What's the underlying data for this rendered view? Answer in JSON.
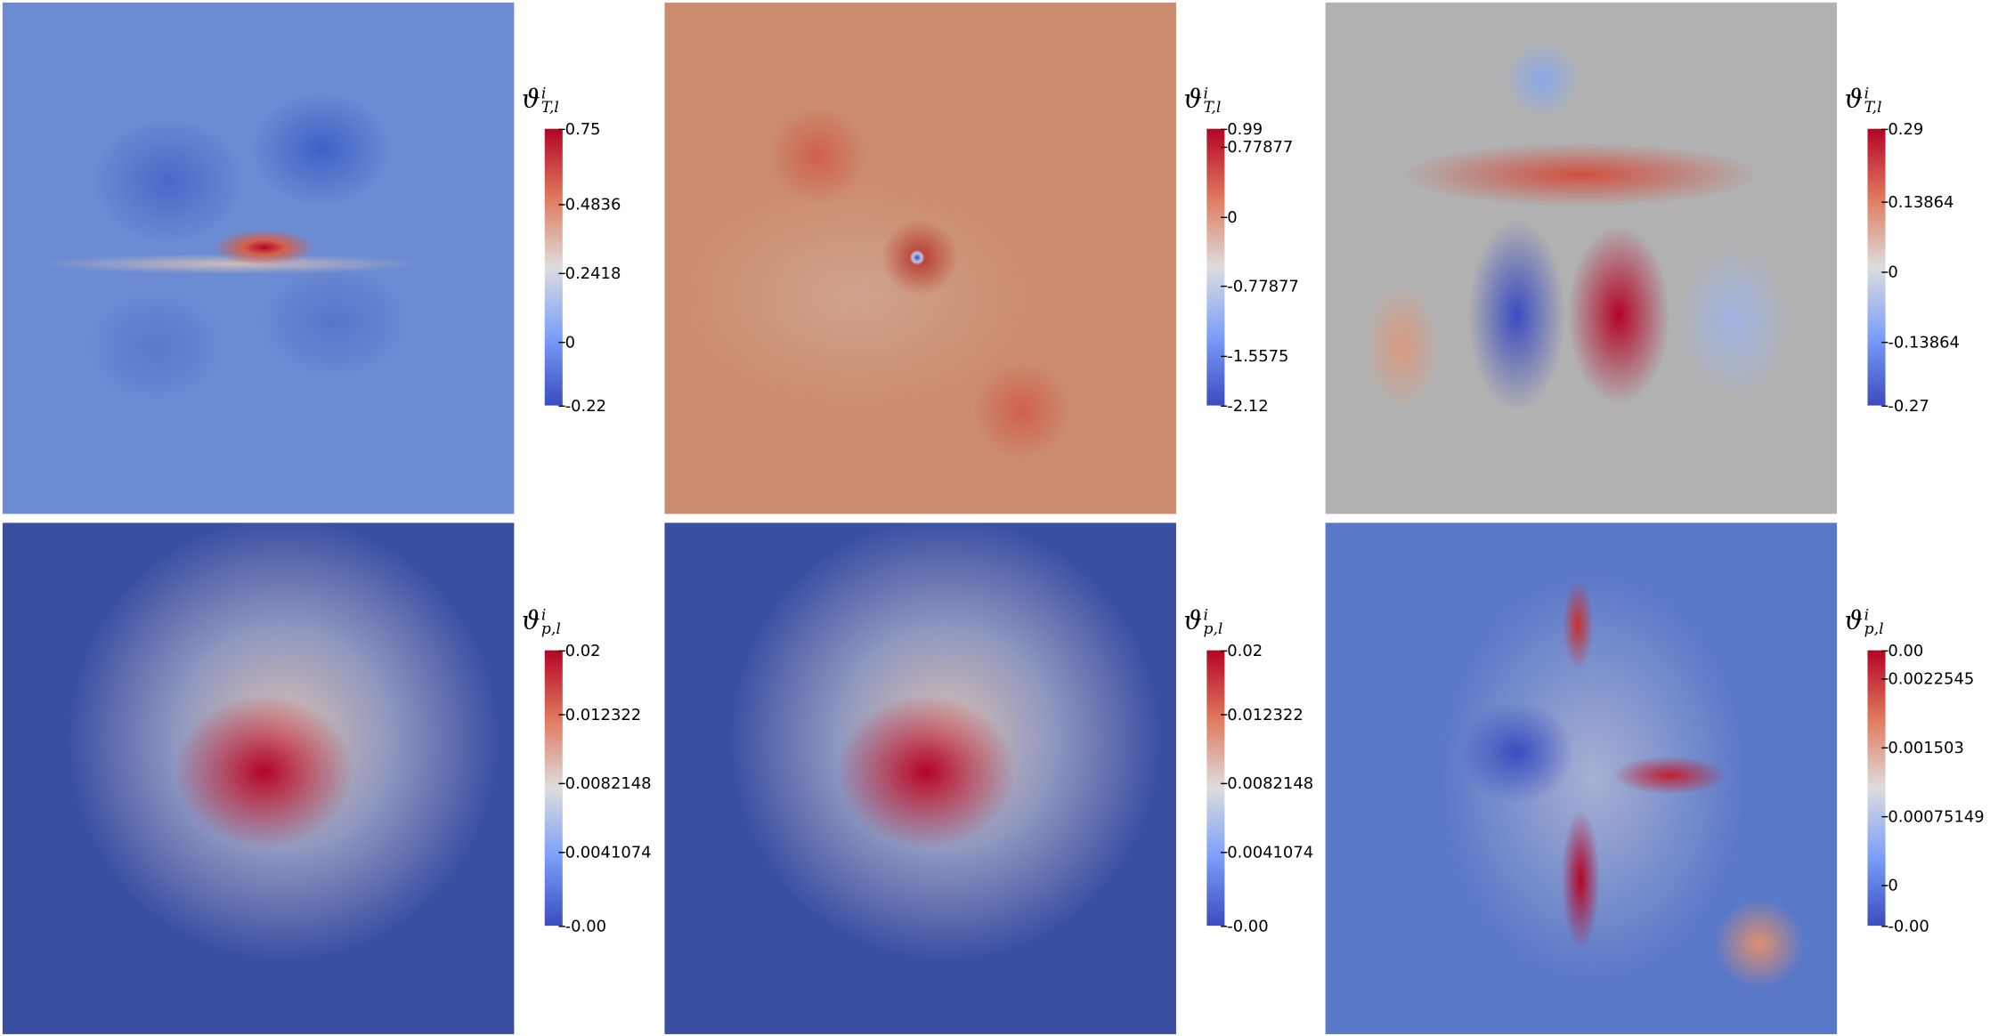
{
  "panels": [
    {
      "label": {
        "symbol": "ϑ",
        "sup": "i",
        "sub": "T,l"
      },
      "ticks": [
        "0.75",
        "0.4836",
        "0.2418",
        "0",
        "-0.22"
      ]
    },
    {
      "label": {
        "symbol": "ϑ",
        "sup": "i",
        "sub": "T,l"
      },
      "ticks": [
        "0.99",
        "0.77877",
        "0",
        "-0.77877",
        "-1.5575",
        "-2.12"
      ]
    },
    {
      "label": {
        "symbol": "ϑ",
        "sup": "i",
        "sub": "T,l"
      },
      "ticks": [
        "0.29",
        "0.13864",
        "0",
        "-0.13864",
        "-0.27"
      ]
    },
    {
      "label": {
        "symbol": "ϑ",
        "sup": "i",
        "sub": "p,l"
      },
      "ticks": [
        "0.02",
        "0.012322",
        "0.0082148",
        "0.0041074",
        "-0.00"
      ]
    },
    {
      "label": {
        "symbol": "ϑ",
        "sup": "i",
        "sub": "p,l"
      },
      "ticks": [
        "0.02",
        "0.012322",
        "0.0082148",
        "0.0041074",
        "-0.00"
      ]
    },
    {
      "label": {
        "symbol": "ϑ",
        "sup": "i",
        "sub": "p,l"
      },
      "ticks": [
        "0.00",
        "0.0022545",
        "0.001503",
        "0.00075149",
        "0",
        "-0.00"
      ]
    }
  ]
}
